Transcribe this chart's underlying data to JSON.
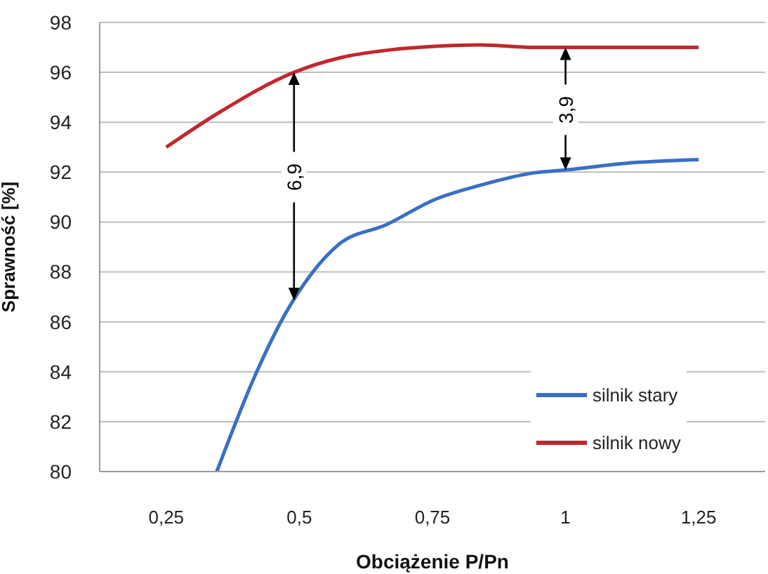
{
  "chart_data": {
    "type": "line",
    "xlabel": "Obciążenie P/Pn",
    "ylabel": "Sprawność [%]",
    "xlim": [
      0.125,
      1.375
    ],
    "xticks": [
      {
        "value": 0.25,
        "label": "0,25"
      },
      {
        "value": 0.5,
        "label": "0,5"
      },
      {
        "value": 0.75,
        "label": "0,75"
      },
      {
        "value": 1,
        "label": "1"
      },
      {
        "value": 1.25,
        "label": "1,25"
      }
    ],
    "ylim": [
      80,
      98
    ],
    "yticks": [
      80,
      82,
      84,
      86,
      88,
      90,
      92,
      94,
      96,
      98
    ],
    "grid": "y",
    "legend": "bottom right",
    "marker": "none",
    "line_style": "solid",
    "series": [
      {
        "name": "silnik stary",
        "color": "#3a6fc4",
        "x": [
          0.345,
          0.42,
          0.473,
          0.52,
          0.574,
          0.664,
          0.754,
          0.844,
          0.934,
          1.006,
          1.11,
          1.25
        ],
        "values": [
          80,
          84,
          86.3,
          87.85,
          89.1,
          89.9,
          90.9,
          91.5,
          91.95,
          92.1,
          92.35,
          92.5
        ]
      },
      {
        "name": "silnik nowy",
        "color": "#c0282d",
        "x": [
          0.25,
          0.35,
          0.49,
          0.58,
          0.67,
          0.76,
          0.84,
          0.94,
          1.01,
          1.25
        ],
        "values": [
          93.0,
          94.4,
          96.0,
          96.6,
          96.9,
          97.05,
          97.1,
          97.0,
          97.0,
          97.0
        ]
      }
    ],
    "annotations": [
      {
        "text": "6,9",
        "x": 0.49,
        "y": 91.8
      },
      {
        "text": "3,9",
        "x": 1.0,
        "y": 94.5
      }
    ]
  }
}
